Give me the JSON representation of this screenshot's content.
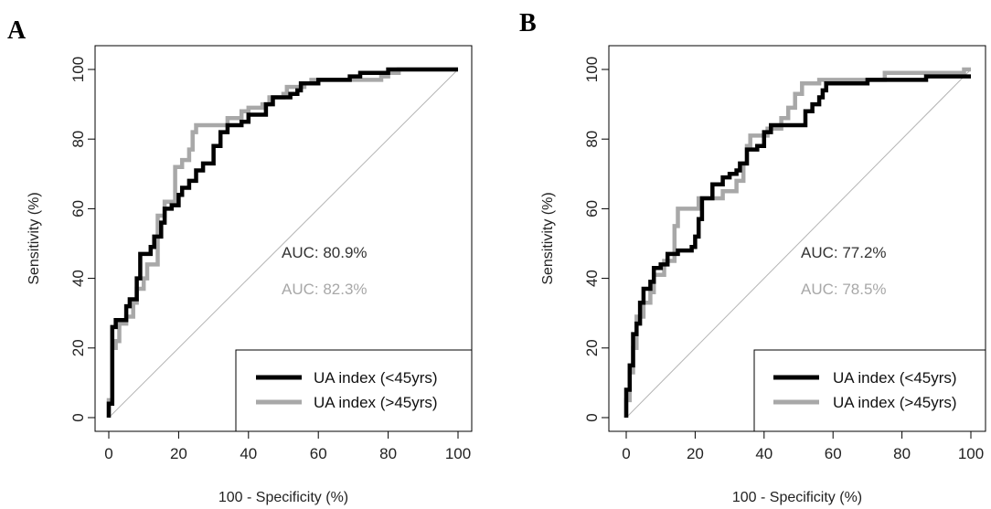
{
  "chart_data": [
    {
      "type": "line",
      "panel_label": "A",
      "xlabel": "100 - Specificity (%)",
      "ylabel": "Sensitivity (%)",
      "xlim": [
        0,
        100
      ],
      "ylim": [
        0,
        100
      ],
      "x_ticks": [
        "0",
        "20",
        "40",
        "60",
        "80",
        "100"
      ],
      "y_ticks": [
        "0",
        "20",
        "40",
        "60",
        "80",
        "100"
      ],
      "grid": false,
      "reference_line": true,
      "legend_position": "bottom-right",
      "annotations": [
        {
          "text": "AUC: 80.9%",
          "color": "#333333"
        },
        {
          "text": "AUC: 82.3%",
          "color": "#a8a8a8"
        }
      ],
      "series": [
        {
          "name": "UA index (<45yrs)",
          "color": "#000000",
          "points": [
            [
              0,
              0
            ],
            [
              0,
              4
            ],
            [
              1,
              4
            ],
            [
              1,
              26
            ],
            [
              2,
              26
            ],
            [
              2,
              28
            ],
            [
              5,
              28
            ],
            [
              5,
              32
            ],
            [
              6,
              32
            ],
            [
              6,
              34
            ],
            [
              8,
              34
            ],
            [
              8,
              40
            ],
            [
              9,
              40
            ],
            [
              9,
              47
            ],
            [
              12,
              47
            ],
            [
              12,
              49
            ],
            [
              13,
              49
            ],
            [
              13,
              52
            ],
            [
              15,
              52
            ],
            [
              15,
              56
            ],
            [
              16,
              56
            ],
            [
              16,
              60
            ],
            [
              18,
              60
            ],
            [
              18,
              61
            ],
            [
              20,
              61
            ],
            [
              20,
              64
            ],
            [
              21,
              64
            ],
            [
              21,
              66
            ],
            [
              23,
              66
            ],
            [
              23,
              68
            ],
            [
              25,
              68
            ],
            [
              25,
              71
            ],
            [
              27,
              71
            ],
            [
              27,
              73
            ],
            [
              30,
              73
            ],
            [
              30,
              78
            ],
            [
              32,
              78
            ],
            [
              32,
              82
            ],
            [
              34,
              82
            ],
            [
              34,
              84
            ],
            [
              38,
              84
            ],
            [
              38,
              85
            ],
            [
              40,
              85
            ],
            [
              40,
              87
            ],
            [
              45,
              87
            ],
            [
              45,
              90
            ],
            [
              47,
              90
            ],
            [
              47,
              92
            ],
            [
              52,
              92
            ],
            [
              52,
              93
            ],
            [
              54,
              93
            ],
            [
              54,
              94
            ],
            [
              55,
              94
            ],
            [
              55,
              96
            ],
            [
              60,
              96
            ],
            [
              60,
              97
            ],
            [
              69,
              97
            ],
            [
              69,
              98
            ],
            [
              72,
              98
            ],
            [
              72,
              99
            ],
            [
              80,
              99
            ],
            [
              80,
              100
            ],
            [
              100,
              100
            ]
          ]
        },
        {
          "name": "UA index (>45yrs)",
          "color": "#a8a8a8",
          "points": [
            [
              0,
              0
            ],
            [
              0,
              5
            ],
            [
              1,
              5
            ],
            [
              1,
              20
            ],
            [
              2,
              20
            ],
            [
              2,
              22
            ],
            [
              3,
              22
            ],
            [
              3,
              27
            ],
            [
              5,
              27
            ],
            [
              5,
              29
            ],
            [
              7,
              29
            ],
            [
              7,
              33
            ],
            [
              8,
              33
            ],
            [
              8,
              37
            ],
            [
              10,
              37
            ],
            [
              10,
              40
            ],
            [
              11,
              40
            ],
            [
              11,
              44
            ],
            [
              14,
              44
            ],
            [
              14,
              58
            ],
            [
              16,
              58
            ],
            [
              16,
              62
            ],
            [
              19,
              62
            ],
            [
              19,
              72
            ],
            [
              21,
              72
            ],
            [
              21,
              74
            ],
            [
              23,
              74
            ],
            [
              23,
              77
            ],
            [
              24,
              77
            ],
            [
              24,
              82
            ],
            [
              25,
              82
            ],
            [
              25,
              84
            ],
            [
              34,
              84
            ],
            [
              34,
              86
            ],
            [
              38,
              86
            ],
            [
              38,
              88
            ],
            [
              40,
              88
            ],
            [
              40,
              89
            ],
            [
              44,
              89
            ],
            [
              44,
              90
            ],
            [
              46,
              90
            ],
            [
              46,
              92
            ],
            [
              50,
              92
            ],
            [
              50,
              93
            ],
            [
              51,
              93
            ],
            [
              51,
              95
            ],
            [
              56,
              95
            ],
            [
              56,
              96
            ],
            [
              58,
              96
            ],
            [
              58,
              97
            ],
            [
              78,
              97
            ],
            [
              78,
              98
            ],
            [
              80,
              98
            ],
            [
              80,
              99
            ],
            [
              83,
              99
            ],
            [
              83,
              100
            ],
            [
              100,
              100
            ]
          ]
        }
      ]
    },
    {
      "type": "line",
      "panel_label": "B",
      "xlabel": "100 - Specificity (%)",
      "ylabel": "Sensitivity (%)",
      "xlim": [
        0,
        100
      ],
      "ylim": [
        0,
        100
      ],
      "x_ticks": [
        "0",
        "20",
        "40",
        "60",
        "80",
        "100"
      ],
      "y_ticks": [
        "0",
        "20",
        "40",
        "60",
        "80",
        "100"
      ],
      "grid": false,
      "reference_line": true,
      "legend_position": "bottom-right",
      "annotations": [
        {
          "text": "AUC: 77.2%",
          "color": "#333333"
        },
        {
          "text": "AUC: 78.5%",
          "color": "#a8a8a8"
        }
      ],
      "series": [
        {
          "name": "UA index (<45yrs)",
          "color": "#000000",
          "points": [
            [
              0,
              0
            ],
            [
              0,
              8
            ],
            [
              1,
              8
            ],
            [
              1,
              15
            ],
            [
              2,
              15
            ],
            [
              2,
              24
            ],
            [
              3,
              24
            ],
            [
              3,
              27
            ],
            [
              4,
              27
            ],
            [
              4,
              33
            ],
            [
              5,
              33
            ],
            [
              5,
              37
            ],
            [
              7,
              37
            ],
            [
              7,
              39
            ],
            [
              8,
              39
            ],
            [
              8,
              43
            ],
            [
              10,
              43
            ],
            [
              10,
              44
            ],
            [
              12,
              44
            ],
            [
              12,
              47
            ],
            [
              15,
              47
            ],
            [
              15,
              48
            ],
            [
              19,
              48
            ],
            [
              19,
              49
            ],
            [
              20,
              49
            ],
            [
              20,
              52
            ],
            [
              21,
              52
            ],
            [
              21,
              57
            ],
            [
              22,
              57
            ],
            [
              22,
              63
            ],
            [
              25,
              63
            ],
            [
              25,
              67
            ],
            [
              28,
              67
            ],
            [
              28,
              69
            ],
            [
              30,
              69
            ],
            [
              30,
              70
            ],
            [
              32,
              70
            ],
            [
              32,
              71
            ],
            [
              33,
              71
            ],
            [
              33,
              73
            ],
            [
              35,
              73
            ],
            [
              35,
              77
            ],
            [
              38,
              77
            ],
            [
              38,
              78
            ],
            [
              40,
              78
            ],
            [
              40,
              82
            ],
            [
              42,
              82
            ],
            [
              42,
              84
            ],
            [
              52,
              84
            ],
            [
              52,
              88
            ],
            [
              54,
              88
            ],
            [
              54,
              90
            ],
            [
              56,
              90
            ],
            [
              56,
              92
            ],
            [
              57,
              92
            ],
            [
              57,
              94
            ],
            [
              58,
              94
            ],
            [
              58,
              96
            ],
            [
              70,
              96
            ],
            [
              70,
              97
            ],
            [
              87,
              97
            ],
            [
              87,
              98
            ],
            [
              100,
              98
            ]
          ]
        },
        {
          "name": "UA index (>45yrs)",
          "color": "#a8a8a8",
          "points": [
            [
              0,
              0
            ],
            [
              0,
              5
            ],
            [
              1,
              5
            ],
            [
              1,
              13
            ],
            [
              2,
              13
            ],
            [
              2,
              20
            ],
            [
              3,
              20
            ],
            [
              3,
              29
            ],
            [
              5,
              29
            ],
            [
              5,
              33
            ],
            [
              7,
              33
            ],
            [
              7,
              36
            ],
            [
              8,
              36
            ],
            [
              8,
              41
            ],
            [
              11,
              41
            ],
            [
              11,
              45
            ],
            [
              14,
              45
            ],
            [
              14,
              55
            ],
            [
              15,
              55
            ],
            [
              15,
              60
            ],
            [
              21,
              60
            ],
            [
              21,
              63
            ],
            [
              28,
              63
            ],
            [
              28,
              65
            ],
            [
              32,
              65
            ],
            [
              32,
              68
            ],
            [
              34,
              68
            ],
            [
              34,
              73
            ],
            [
              35,
              73
            ],
            [
              35,
              78
            ],
            [
              36,
              78
            ],
            [
              36,
              81
            ],
            [
              41,
              81
            ],
            [
              41,
              83
            ],
            [
              45,
              83
            ],
            [
              45,
              86
            ],
            [
              47,
              86
            ],
            [
              47,
              89
            ],
            [
              49,
              89
            ],
            [
              49,
              93
            ],
            [
              51,
              93
            ],
            [
              51,
              96
            ],
            [
              56,
              96
            ],
            [
              56,
              97
            ],
            [
              75,
              97
            ],
            [
              75,
              99
            ],
            [
              98,
              99
            ],
            [
              98,
              100
            ],
            [
              100,
              100
            ]
          ]
        }
      ]
    }
  ]
}
